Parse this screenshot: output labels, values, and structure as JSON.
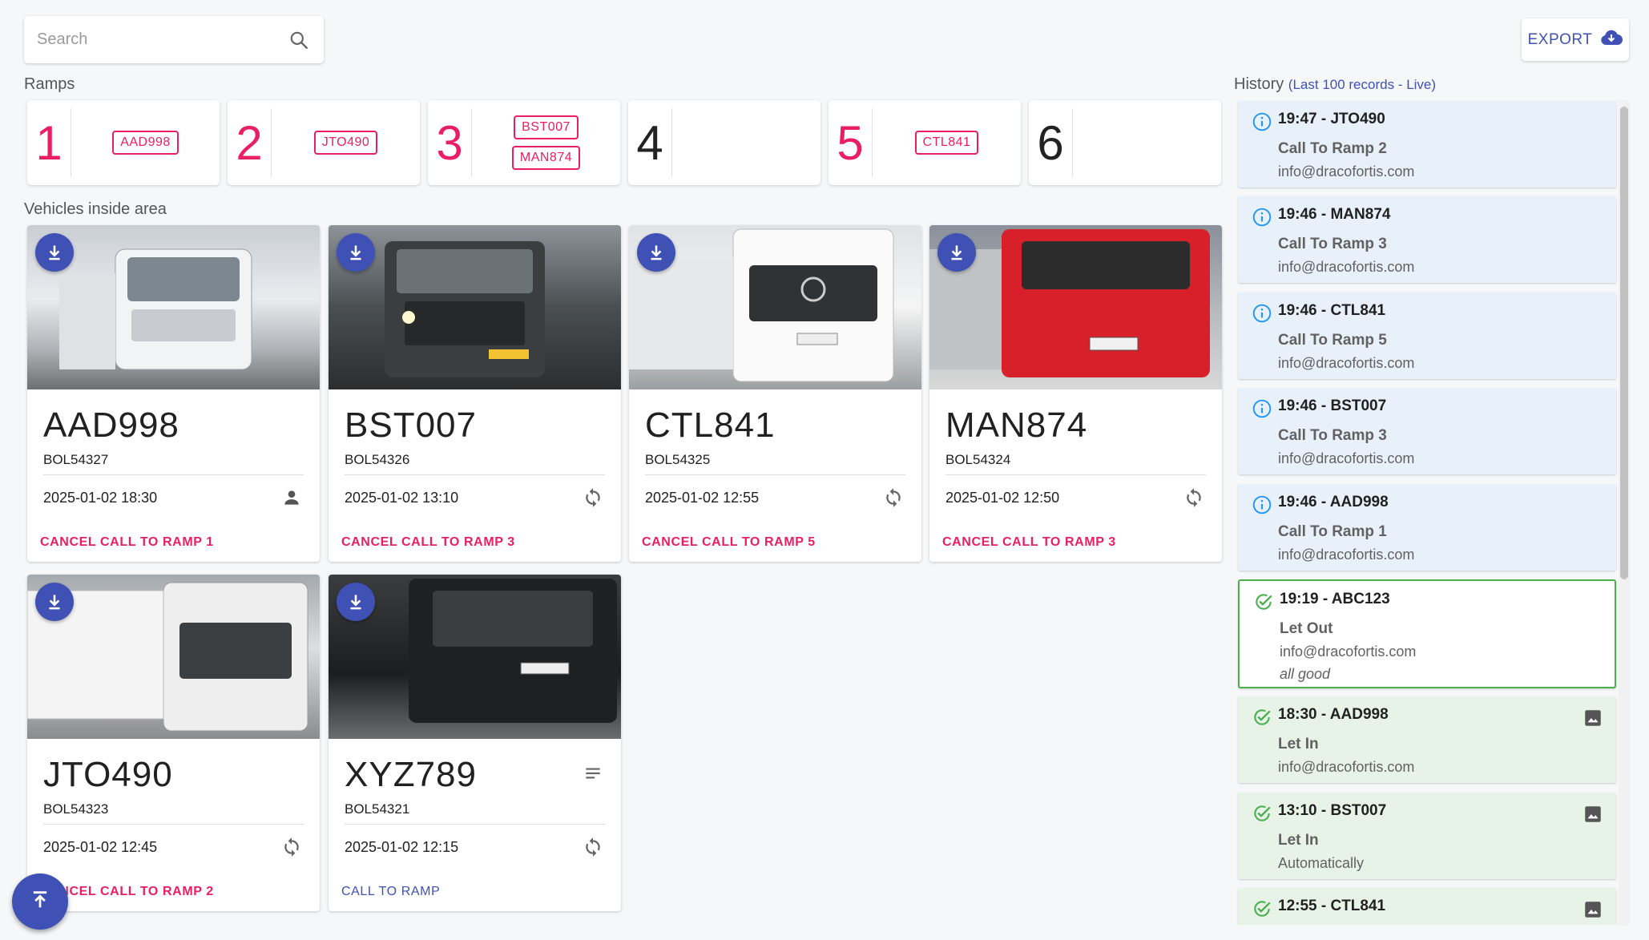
{
  "search": {
    "placeholder": "Search"
  },
  "export": {
    "label": "EXPORT"
  },
  "labels": {
    "ramps": "Ramps",
    "vehicles": "Vehicles inside area",
    "history": "History",
    "history_sub": "(Last 100 records - Live)"
  },
  "ramps": [
    {
      "number": "1",
      "plates": [
        "AAD998"
      ]
    },
    {
      "number": "2",
      "plates": [
        "JTO490"
      ]
    },
    {
      "number": "3",
      "plates": [
        "BST007",
        "MAN874"
      ]
    },
    {
      "number": "4",
      "plates": []
    },
    {
      "number": "5",
      "plates": [
        "CTL841"
      ]
    },
    {
      "number": "6",
      "plates": []
    }
  ],
  "vehicles": [
    {
      "plate": "AAD998",
      "bol": "BOL54327",
      "time": "2025-01-02 18:30",
      "status_icon": "person-icon",
      "action": "CANCEL CALL TO RAMP 1"
    },
    {
      "plate": "BST007",
      "bol": "BOL54326",
      "time": "2025-01-02 13:10",
      "status_icon": "sync-icon",
      "action": "CANCEL CALL TO RAMP 3"
    },
    {
      "plate": "CTL841",
      "bol": "BOL54325",
      "time": "2025-01-02 12:55",
      "status_icon": "sync-icon",
      "action": "CANCEL CALL TO RAMP 5"
    },
    {
      "plate": "MAN874",
      "bol": "BOL54324",
      "time": "2025-01-02 12:50",
      "status_icon": "sync-icon",
      "action": "CANCEL CALL TO RAMP 3"
    },
    {
      "plate": "JTO490",
      "bol": "BOL54323",
      "time": "2025-01-02 12:45",
      "status_icon": "sync-icon",
      "action": "CANCEL CALL TO RAMP 2"
    },
    {
      "plate": "XYZ789",
      "bol": "BOL54321",
      "time": "2025-01-02 12:15",
      "status_icon": "sync-icon",
      "action": "CALL TO RAMP"
    }
  ],
  "history": [
    {
      "type": "info",
      "head": "19:47 - JTO490",
      "action": "Call To Ramp 2",
      "who": "info@dracofortis.com"
    },
    {
      "type": "info",
      "head": "19:46 - MAN874",
      "action": "Call To Ramp 3",
      "who": "info@dracofortis.com"
    },
    {
      "type": "info",
      "head": "19:46 - CTL841",
      "action": "Call To Ramp 5",
      "who": "info@dracofortis.com"
    },
    {
      "type": "info",
      "head": "19:46 - BST007",
      "action": "Call To Ramp 3",
      "who": "info@dracofortis.com"
    },
    {
      "type": "info",
      "head": "19:46 - AAD998",
      "action": "Call To Ramp 1",
      "who": "info@dracofortis.com"
    },
    {
      "type": "ok",
      "head": "19:19 - ABC123",
      "action": "Let Out",
      "who": "info@dracofortis.com",
      "note": "all good"
    },
    {
      "type": "ok",
      "head": "18:30 - AAD998",
      "action": "Let In",
      "who": "info@dracofortis.com"
    },
    {
      "type": "ok",
      "head": "13:10 - BST007",
      "action": "Let In",
      "who": "Automatically"
    },
    {
      "type": "ok",
      "head": "12:55 - CTL841"
    }
  ],
  "colors": {
    "accent": "#3f51b5",
    "danger": "#e91e63",
    "info_bg": "#e8f1fa",
    "ok_bg": "#e8f3e8",
    "ok": "#4caf50",
    "info": "#2196f3"
  }
}
